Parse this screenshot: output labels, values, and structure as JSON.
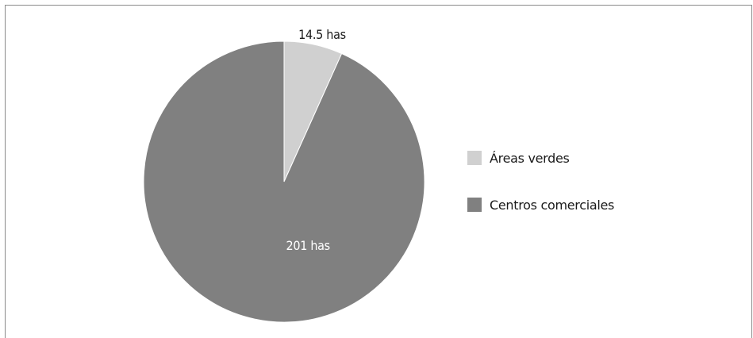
{
  "chart_data": {
    "type": "pie",
    "title": "",
    "slices": [
      {
        "name": "Áreas verdes",
        "value": 14.5,
        "label": "14.5 has",
        "color": "#d0d0d0"
      },
      {
        "name": "Centros comerciales",
        "value": 201,
        "label": "201 has",
        "color": "#808080"
      }
    ],
    "start_angle_deg": 0,
    "direction": "clockwise",
    "legend_position": "right"
  }
}
